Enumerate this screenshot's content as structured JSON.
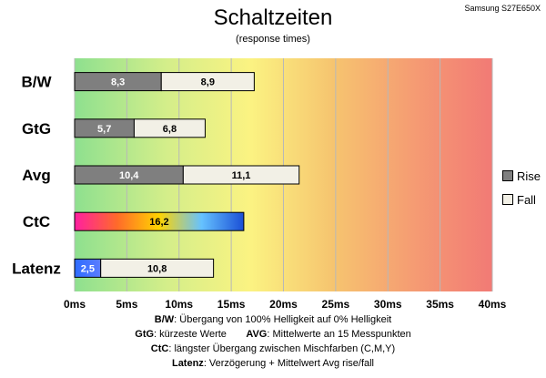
{
  "device": "Samsung S27E650X",
  "colors": {
    "rise": "#7f7f7f",
    "fall": "#f2f0e6"
  },
  "chart_data": {
    "type": "bar",
    "orientation": "horizontal",
    "stacked": true,
    "title": "Schaltzeiten",
    "subtitle": "(response times)",
    "categories": [
      "B/W",
      "GtG",
      "Avg",
      "CtC",
      "Latenz"
    ],
    "series": [
      {
        "name": "Rise",
        "values": [
          8.3,
          5.7,
          10.4,
          null,
          2.5
        ],
        "labels": [
          "8,3",
          "5,7",
          "10,4",
          "",
          "2,5"
        ]
      },
      {
        "name": "Fall",
        "values": [
          8.9,
          6.8,
          11.1,
          16.2,
          10.8
        ],
        "labels": [
          "8,9",
          "6,8",
          "11,1",
          "16,2",
          "10,8"
        ]
      }
    ],
    "xlim": [
      0,
      40
    ],
    "xticks": [
      0,
      5,
      10,
      15,
      20,
      25,
      30,
      35,
      40
    ],
    "xtick_labels": [
      "0ms",
      "5ms",
      "10ms",
      "15ms",
      "20ms",
      "25ms",
      "30ms",
      "35ms",
      "40ms"
    ],
    "grid": true,
    "legend": "right",
    "background": "gradient green-yellow-red"
  },
  "notes": [
    {
      "label": "B/W",
      "text": ":  Übergang von 100% Helligkeit auf 0% Helligkeit"
    },
    {
      "label": "GtG",
      "text": ": kürzeste  Werte",
      "label2": "AVG",
      "text2": ": Mittelwerte  an 15 Messpunkten"
    },
    {
      "label": "CtC",
      "text": ": längster Übergang  zwischen Mischfarben (C,M,Y)"
    },
    {
      "label": "Latenz",
      "text": ": Verzögerung  + Mittelwert Avg rise/fall"
    }
  ]
}
